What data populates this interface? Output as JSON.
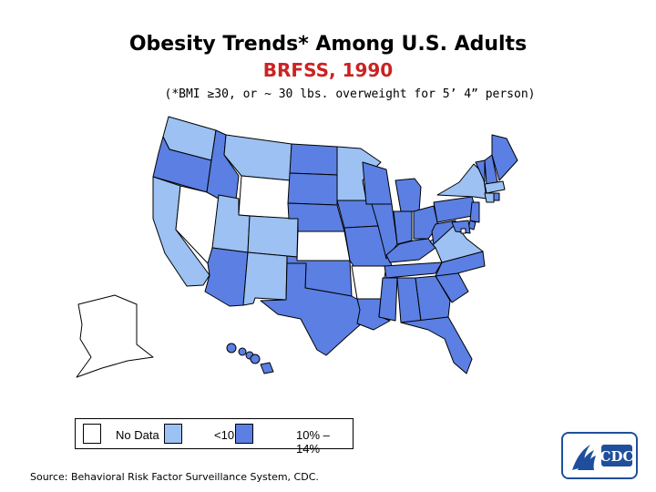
{
  "title": "Obesity Trends* Among U.S. Adults",
  "subtitle": "BRFSS, 1990",
  "note": "(*BMI ≥30, or ~ 30 lbs. overweight for 5’ 4” person)",
  "colors": {
    "title": "#000000",
    "subtitle": "#cc2222",
    "no_data": "#ffffff",
    "lt10": "#9cc1f2",
    "10to14": "#5b7fe2",
    "border": "#000000",
    "logo": "#1f4f9c"
  },
  "legend": {
    "items": [
      {
        "key": "no_data",
        "label": "No Data"
      },
      {
        "key": "lt10",
        "label": "<10"
      },
      {
        "key": "10to14",
        "label": "10% –14%"
      }
    ]
  },
  "source": "Source: Behavioral Risk Factor Surveillance System, CDC.",
  "logo_text": "CDC",
  "states": [
    {
      "name": "WA",
      "category": "lt10"
    },
    {
      "name": "OR",
      "category": "10to14"
    },
    {
      "name": "CA",
      "category": "lt10"
    },
    {
      "name": "NV",
      "category": "no_data"
    },
    {
      "name": "ID",
      "category": "10to14"
    },
    {
      "name": "MT",
      "category": "lt10"
    },
    {
      "name": "WY",
      "category": "no_data"
    },
    {
      "name": "UT",
      "category": "lt10"
    },
    {
      "name": "AZ",
      "category": "10to14"
    },
    {
      "name": "CO",
      "category": "lt10"
    },
    {
      "name": "NM",
      "category": "lt10"
    },
    {
      "name": "ND",
      "category": "10to14"
    },
    {
      "name": "SD",
      "category": "10to14"
    },
    {
      "name": "NE",
      "category": "10to14"
    },
    {
      "name": "KS",
      "category": "no_data"
    },
    {
      "name": "OK",
      "category": "10to14"
    },
    {
      "name": "TX",
      "category": "10to14"
    },
    {
      "name": "MN",
      "category": "lt10"
    },
    {
      "name": "IA",
      "category": "10to14"
    },
    {
      "name": "MO",
      "category": "10to14"
    },
    {
      "name": "AR",
      "category": "no_data"
    },
    {
      "name": "LA",
      "category": "10to14"
    },
    {
      "name": "WI",
      "category": "10to14"
    },
    {
      "name": "IL",
      "category": "10to14"
    },
    {
      "name": "MI",
      "category": "10to14"
    },
    {
      "name": "IN",
      "category": "10to14"
    },
    {
      "name": "OH",
      "category": "10to14"
    },
    {
      "name": "KY",
      "category": "10to14"
    },
    {
      "name": "TN",
      "category": "10to14"
    },
    {
      "name": "MS",
      "category": "10to14"
    },
    {
      "name": "AL",
      "category": "10to14"
    },
    {
      "name": "GA",
      "category": "10to14"
    },
    {
      "name": "FL",
      "category": "10to14"
    },
    {
      "name": "SC",
      "category": "10to14"
    },
    {
      "name": "NC",
      "category": "10to14"
    },
    {
      "name": "VA",
      "category": "lt10"
    },
    {
      "name": "WV",
      "category": "10to14"
    },
    {
      "name": "PA",
      "category": "10to14"
    },
    {
      "name": "NY",
      "category": "lt10"
    },
    {
      "name": "VT",
      "category": "10to14"
    },
    {
      "name": "NH",
      "category": "10to14"
    },
    {
      "name": "ME",
      "category": "10to14"
    },
    {
      "name": "MA",
      "category": "lt10"
    },
    {
      "name": "CT",
      "category": "lt10"
    },
    {
      "name": "RI",
      "category": "10to14"
    },
    {
      "name": "NJ",
      "category": "10to14"
    },
    {
      "name": "DE",
      "category": "10to14"
    },
    {
      "name": "MD",
      "category": "10to14"
    },
    {
      "name": "DC",
      "category": "no_data"
    },
    {
      "name": "AK",
      "category": "no_data"
    },
    {
      "name": "HI",
      "category": "10to14"
    }
  ]
}
